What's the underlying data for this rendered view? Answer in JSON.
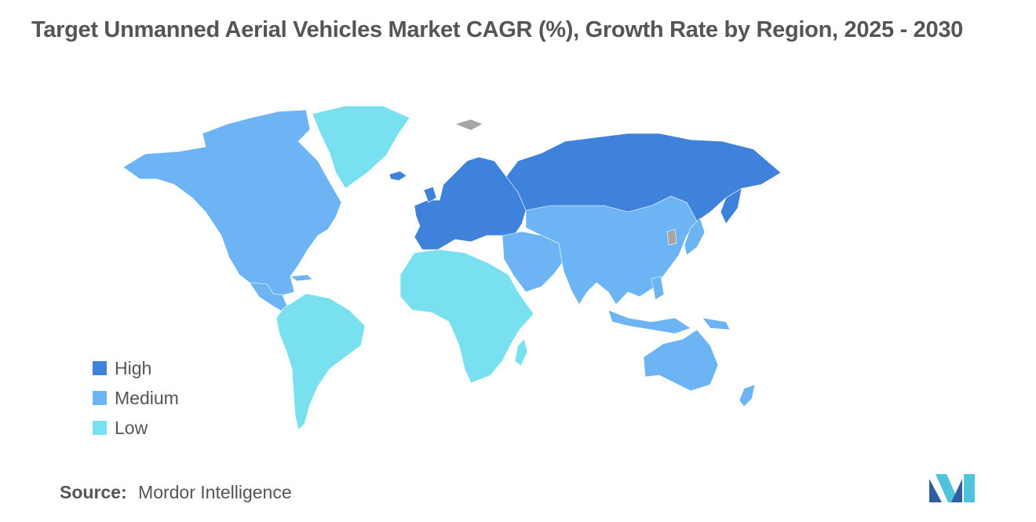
{
  "title": "Target Unmanned Aerial Vehicles Market CAGR (%), Growth Rate by Region, 2025 - 2030",
  "legend": {
    "items": [
      {
        "label": "High",
        "color": "#3e82db"
      },
      {
        "label": "Medium",
        "color": "#6cb4f4"
      },
      {
        "label": "Low",
        "color": "#78e0ee"
      }
    ]
  },
  "no_data_color": "#a6a6a6",
  "regions": {
    "north_america": {
      "level": "Medium"
    },
    "greenland": {
      "level": "Low"
    },
    "south_america": {
      "level": "Low"
    },
    "europe": {
      "level": "High"
    },
    "russia": {
      "level": "High"
    },
    "africa": {
      "level": "Low"
    },
    "middle_east": {
      "level": "Medium"
    },
    "asia": {
      "level": "Medium"
    },
    "oceania": {
      "level": "Medium"
    }
  },
  "source": {
    "label": "Source:",
    "value": "Mordor Intelligence"
  },
  "logo": {
    "icon": "mordor-intelligence-logo-icon"
  }
}
